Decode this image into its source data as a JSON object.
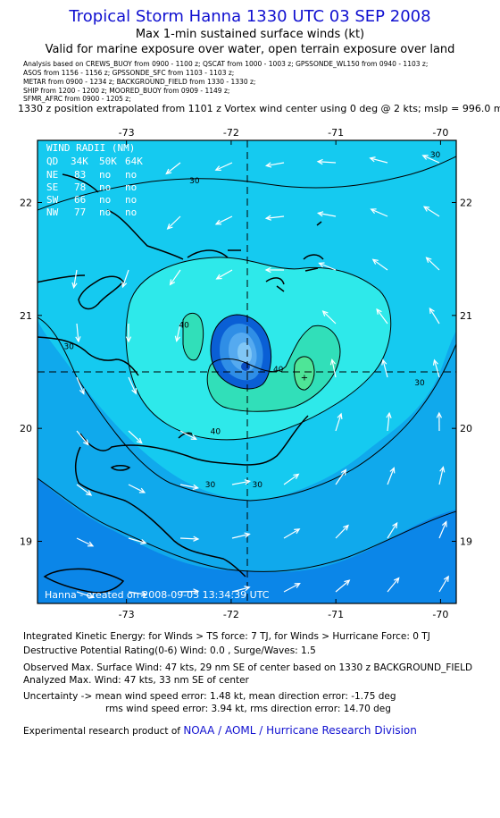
{
  "header": {
    "title": "Tropical Storm Hanna 1330 UTC 03 SEP 2008",
    "subtitle": "Max 1-min sustained surface winds (kt)",
    "valid": "Valid for marine exposure over water, open terrain exposure over land",
    "analysis_lines": [
      "Analysis based on  CREWS_BUOY from 0900 - 1100 z;  QSCAT from 1000 - 1003 z;  GPSSONDE_WL150 from 0940 - 1103 z;",
      "ASOS from 1156 - 1156 z;  GPSSONDE_SFC from 1103 - 1103 z;",
      "METAR from 0900 - 1234 z;  BACKGROUND_FIELD from 1330 - 1330 z;",
      "SHIP from 1200 - 1200 z;  MOORED_BUOY from 0909 - 1149 z;",
      "SFMR_AFRC from 0900 - 1205 z;"
    ],
    "position_line": "1330 z position extrapolated from 1101 z Vortex wind center using 0 deg @ 2 kts; mslp = 996.0 mb"
  },
  "chart_data": {
    "type": "contour_map",
    "x_ticks": [
      "-73",
      "-72",
      "-71",
      "-70"
    ],
    "x_tick_values": [
      -73,
      -72,
      -71,
      -70
    ],
    "y_ticks": [
      "22",
      "21",
      "20",
      "19"
    ],
    "y_tick_values": [
      22,
      21,
      20,
      19
    ],
    "xlim": [
      -73.85,
      -69.85
    ],
    "ylim": [
      18.45,
      22.55
    ],
    "center": {
      "lon": -71.82,
      "lat": 20.55
    },
    "max_wind_marker": {
      "lon": -71.3,
      "lat": 20.45
    },
    "contour_labels": [
      {
        "text": "30",
        "lon": -70.05,
        "lat": 22.4
      },
      {
        "text": "30",
        "lon": -72.35,
        "lat": 22.17
      },
      {
        "text": "30",
        "lon": -73.55,
        "lat": 20.7
      },
      {
        "text": "30",
        "lon": -70.2,
        "lat": 20.38
      },
      {
        "text": "30",
        "lon": -72.2,
        "lat": 19.48
      },
      {
        "text": "30",
        "lon": -71.75,
        "lat": 19.48
      },
      {
        "text": "40",
        "lon": -72.45,
        "lat": 20.89
      },
      {
        "text": "40",
        "lon": -72.15,
        "lat": 19.95
      },
      {
        "text": "40",
        "lon": -71.55,
        "lat": 20.5
      }
    ],
    "colors": {
      "outer": "#0b86e8",
      "c25": "#10a9ec",
      "c30": "#15caf0",
      "c35": "#2ee9ea",
      "c40": "#31dfb9",
      "c45": "#4ee597",
      "core1": "#0a5fd5",
      "core2": "#2f8ee6",
      "core3": "#55aaf0",
      "core4": "#80c7f6",
      "land": "#000000"
    },
    "wind_radii": {
      "title": "WIND RADII (NM)",
      "header": [
        "QD",
        "34K",
        "50K",
        "64K"
      ],
      "rows": [
        [
          "NE",
          "83",
          "no",
          "no"
        ],
        [
          "SE",
          "78",
          "no",
          "no"
        ],
        [
          "SW",
          "66",
          "no",
          "no"
        ],
        [
          "NW",
          "77",
          "no",
          "no"
        ]
      ]
    },
    "credit": "Hanna - created on 2008-09-03 13:34:39 UTC"
  },
  "footer": {
    "ike": "Integrated Kinetic Energy:  for Winds > TS force: 7 TJ,  for Winds > Hurricane Force: 0 TJ",
    "dpr": "Destructive Potential Rating(0-6)   Wind: 0.0 , Surge/Waves: 1.5",
    "obs_max": "Observed Max. Surface Wind: 47 kts, 29 nm SE of center based on 1330 z BACKGROUND_FIELD",
    "an_max": "Analyzed Max. Wind: 47 kts, 33 nm SE of center",
    "unc1": "Uncertainty -> mean wind speed error: 1.48 kt,   mean direction error:  -1.75 deg",
    "unc2": "rms wind speed error: 3.94 kt,   rms direction error: 14.70 deg",
    "product_prefix": "Experimental research product of",
    "product_link": "NOAA / AOML / Hurricane Research Division"
  }
}
